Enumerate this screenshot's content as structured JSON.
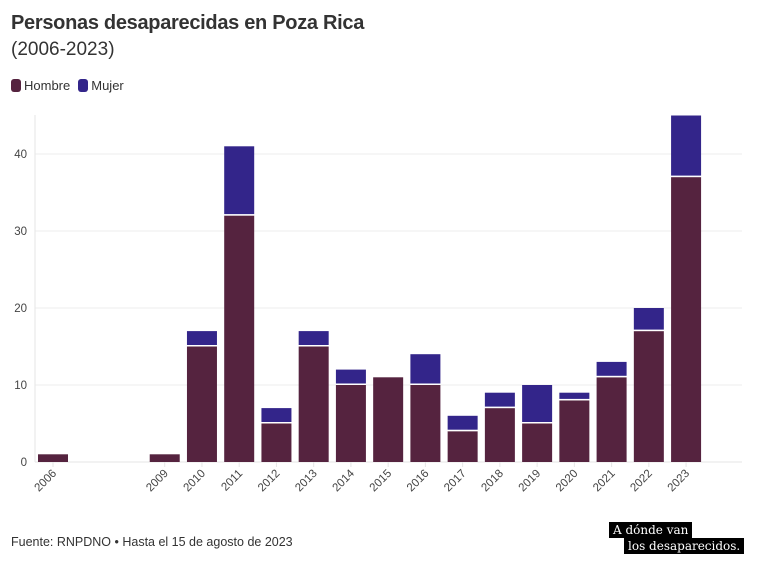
{
  "chart_data": {
    "type": "bar",
    "stacked": true,
    "title": "Personas desaparecidas en Poza Rica",
    "subtitle": "(2006-2023)",
    "categories": [
      "2006",
      "2007",
      "2008",
      "2009",
      "2010",
      "2011",
      "2012",
      "2013",
      "2014",
      "2015",
      "2016",
      "2017",
      "2018",
      "2019",
      "2020",
      "2021",
      "2022",
      "2023"
    ],
    "category_labels": [
      "2006",
      "",
      "",
      "2009",
      "2010",
      "2011",
      "2012",
      "2013",
      "2014",
      "2015",
      "2016",
      "2017",
      "2018",
      "2019",
      "2020",
      "2021",
      "2022",
      "2023"
    ],
    "series": [
      {
        "name": "Hombre",
        "color": "#55233f",
        "values": [
          1,
          0,
          0,
          1,
          15,
          32,
          5,
          15,
          10,
          11,
          10,
          4,
          7,
          5,
          8,
          11,
          17,
          37
        ]
      },
      {
        "name": "Mujer",
        "color": "#33258a",
        "values": [
          0,
          0,
          0,
          0,
          2,
          9,
          2,
          2,
          2,
          0,
          4,
          2,
          2,
          5,
          1,
          2,
          3,
          8
        ]
      }
    ],
    "ylim": [
      0,
      45
    ],
    "yticks": [
      0,
      10,
      20,
      30,
      40
    ],
    "grid": true,
    "legend_position": "top-left",
    "xlabel": "",
    "ylabel": ""
  },
  "footer": "Fuente: RNPDNO • Hasta el 15 de agosto de 2023",
  "logo": {
    "line1": "A dónde van",
    "line2": "los desaparecidos."
  }
}
